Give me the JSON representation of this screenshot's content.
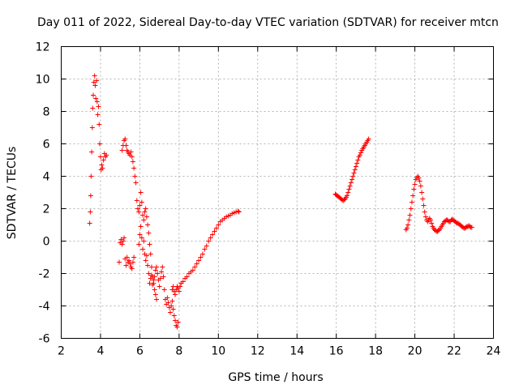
{
  "chart_data": {
    "type": "scatter",
    "title": "Day 011 of 2022, Sidereal Day-to-day VTEC variation (SDTVAR) for receiver mtcn",
    "xlabel": "GPS time / hours",
    "ylabel": "SDTVAR / TECUs",
    "xlim": [
      2,
      24
    ],
    "ylim": [
      -6,
      12
    ],
    "xticks": [
      2,
      4,
      6,
      8,
      10,
      12,
      14,
      16,
      18,
      20,
      22,
      24
    ],
    "yticks": [
      -6,
      -4,
      -2,
      0,
      2,
      4,
      6,
      8,
      10,
      12
    ],
    "grid": true,
    "marker": "+",
    "color": "#ff0000",
    "series": [
      {
        "name": "SDTVAR",
        "points": [
          [
            3.45,
            1.1
          ],
          [
            3.48,
            1.8
          ],
          [
            3.5,
            2.8
          ],
          [
            3.52,
            4.0
          ],
          [
            3.55,
            5.5
          ],
          [
            3.58,
            7.0
          ],
          [
            3.6,
            8.2
          ],
          [
            3.63,
            9.0
          ],
          [
            3.66,
            9.8
          ],
          [
            3.7,
            10.2
          ],
          [
            3.73,
            9.6
          ],
          [
            3.76,
            8.8
          ],
          [
            3.8,
            9.9
          ],
          [
            3.83,
            8.6
          ],
          [
            3.86,
            7.8
          ],
          [
            3.9,
            8.3
          ],
          [
            3.93,
            7.2
          ],
          [
            3.96,
            6.0
          ],
          [
            4.0,
            5.2
          ],
          [
            4.03,
            4.4
          ],
          [
            4.06,
            4.7
          ],
          [
            4.1,
            4.5
          ],
          [
            4.15,
            5.0
          ],
          [
            4.2,
            5.4
          ],
          [
            4.25,
            5.2
          ],
          [
            4.3,
            5.3
          ],
          [
            4.95,
            -1.3
          ],
          [
            5.0,
            -0.1
          ],
          [
            5.05,
            0.1
          ],
          [
            5.1,
            -0.2
          ],
          [
            5.15,
            0.0
          ],
          [
            5.2,
            0.2
          ],
          [
            5.25,
            -1.1
          ],
          [
            5.3,
            -1.5
          ],
          [
            5.35,
            -1.0
          ],
          [
            5.4,
            -1.3
          ],
          [
            5.45,
            -1.2
          ],
          [
            5.5,
            -1.4
          ],
          [
            5.55,
            -1.6
          ],
          [
            5.6,
            -1.7
          ],
          [
            5.65,
            -1.3
          ],
          [
            5.7,
            -1.0
          ],
          [
            5.1,
            5.6
          ],
          [
            5.15,
            5.9
          ],
          [
            5.2,
            6.2
          ],
          [
            5.25,
            6.3
          ],
          [
            5.3,
            5.9
          ],
          [
            5.35,
            5.6
          ],
          [
            5.4,
            5.5
          ],
          [
            5.45,
            5.4
          ],
          [
            5.5,
            5.3
          ],
          [
            5.55,
            5.5
          ],
          [
            5.6,
            5.2
          ],
          [
            5.65,
            4.9
          ],
          [
            5.7,
            4.5
          ],
          [
            5.75,
            4.0
          ],
          [
            5.8,
            3.6
          ],
          [
            5.85,
            2.5
          ],
          [
            5.9,
            2.0
          ],
          [
            5.95,
            1.8
          ],
          [
            6.0,
            2.2
          ],
          [
            6.05,
            3.0
          ],
          [
            6.1,
            2.4
          ],
          [
            6.15,
            1.6
          ],
          [
            6.2,
            1.3
          ],
          [
            6.25,
            1.8
          ],
          [
            6.3,
            2.0
          ],
          [
            6.35,
            1.5
          ],
          [
            6.4,
            1.0
          ],
          [
            6.45,
            0.5
          ],
          [
            6.5,
            -0.2
          ],
          [
            6.55,
            -0.8
          ],
          [
            6.6,
            -1.6
          ],
          [
            6.65,
            -2.2
          ],
          [
            6.7,
            -2.6
          ],
          [
            6.75,
            -3.0
          ],
          [
            6.8,
            -3.3
          ],
          [
            6.85,
            -3.6
          ],
          [
            5.95,
            -0.2
          ],
          [
            6.0,
            0.4
          ],
          [
            6.05,
            0.9
          ],
          [
            6.1,
            0.2
          ],
          [
            6.15,
            -0.5
          ],
          [
            6.2,
            0.0
          ],
          [
            6.25,
            -0.8
          ],
          [
            6.3,
            -1.2
          ],
          [
            6.35,
            -0.9
          ],
          [
            6.4,
            -1.5
          ],
          [
            6.45,
            -2.0
          ],
          [
            6.5,
            -2.6
          ],
          [
            6.55,
            -2.3
          ],
          [
            6.6,
            -2.1
          ],
          [
            6.65,
            -2.7
          ],
          [
            6.7,
            -2.4
          ],
          [
            6.75,
            -2.2
          ],
          [
            6.8,
            -1.8
          ],
          [
            6.85,
            -1.6
          ],
          [
            6.9,
            -2.0
          ],
          [
            6.95,
            -2.4
          ],
          [
            7.0,
            -2.8
          ],
          [
            7.05,
            -2.3
          ],
          [
            7.1,
            -1.9
          ],
          [
            7.15,
            -1.6
          ],
          [
            7.2,
            -2.2
          ],
          [
            7.25,
            -3.0
          ],
          [
            7.3,
            -3.6
          ],
          [
            7.35,
            -3.9
          ],
          [
            7.4,
            -3.5
          ],
          [
            7.45,
            -3.8
          ],
          [
            7.5,
            -4.1
          ],
          [
            7.55,
            -4.4
          ],
          [
            7.6,
            -4.0
          ],
          [
            7.65,
            -3.7
          ],
          [
            7.7,
            -4.2
          ],
          [
            7.75,
            -4.6
          ],
          [
            7.8,
            -4.9
          ],
          [
            7.85,
            -5.2
          ],
          [
            7.9,
            -5.3
          ],
          [
            7.95,
            -5.0
          ],
          [
            7.65,
            -3.0
          ],
          [
            7.7,
            -2.8
          ],
          [
            7.75,
            -3.1
          ],
          [
            7.8,
            -3.3
          ],
          [
            7.85,
            -3.0
          ],
          [
            7.9,
            -2.8
          ],
          [
            7.95,
            -2.9
          ],
          [
            8.0,
            -3.1
          ],
          [
            8.05,
            -2.8
          ],
          [
            8.1,
            -2.6
          ],
          [
            8.2,
            -2.5
          ],
          [
            8.3,
            -2.3
          ],
          [
            8.4,
            -2.2
          ],
          [
            8.5,
            -2.0
          ],
          [
            8.6,
            -1.9
          ],
          [
            8.7,
            -1.8
          ],
          [
            8.8,
            -1.6
          ],
          [
            8.9,
            -1.4
          ],
          [
            9.0,
            -1.2
          ],
          [
            9.1,
            -1.0
          ],
          [
            9.2,
            -0.8
          ],
          [
            9.3,
            -0.5
          ],
          [
            9.4,
            -0.3
          ],
          [
            9.5,
            0.0
          ],
          [
            9.6,
            0.2
          ],
          [
            9.7,
            0.4
          ],
          [
            9.8,
            0.6
          ],
          [
            9.9,
            0.8
          ],
          [
            10.0,
            1.0
          ],
          [
            10.1,
            1.2
          ],
          [
            10.2,
            1.3
          ],
          [
            10.3,
            1.4
          ],
          [
            10.4,
            1.5
          ],
          [
            10.5,
            1.55
          ],
          [
            10.6,
            1.6
          ],
          [
            10.7,
            1.7
          ],
          [
            10.8,
            1.75
          ],
          [
            10.9,
            1.8
          ],
          [
            11.0,
            1.85
          ],
          [
            11.05,
            1.8
          ],
          [
            15.95,
            2.9
          ],
          [
            16.0,
            2.85
          ],
          [
            16.05,
            2.8
          ],
          [
            16.1,
            2.75
          ],
          [
            16.15,
            2.7
          ],
          [
            16.2,
            2.65
          ],
          [
            16.25,
            2.6
          ],
          [
            16.3,
            2.55
          ],
          [
            16.35,
            2.5
          ],
          [
            16.4,
            2.55
          ],
          [
            16.45,
            2.6
          ],
          [
            16.5,
            2.7
          ],
          [
            16.55,
            2.8
          ],
          [
            16.6,
            3.0
          ],
          [
            16.65,
            3.2
          ],
          [
            16.7,
            3.4
          ],
          [
            16.75,
            3.6
          ],
          [
            16.8,
            3.8
          ],
          [
            16.85,
            4.0
          ],
          [
            16.9,
            4.2
          ],
          [
            16.95,
            4.4
          ],
          [
            17.0,
            4.6
          ],
          [
            17.05,
            4.8
          ],
          [
            17.1,
            5.0
          ],
          [
            17.15,
            5.2
          ],
          [
            17.2,
            5.3
          ],
          [
            17.25,
            5.45
          ],
          [
            17.3,
            5.6
          ],
          [
            17.35,
            5.7
          ],
          [
            17.4,
            5.8
          ],
          [
            17.45,
            5.9
          ],
          [
            17.5,
            6.0
          ],
          [
            17.55,
            6.1
          ],
          [
            17.6,
            6.2
          ],
          [
            17.65,
            6.3
          ],
          [
            19.55,
            0.7
          ],
          [
            19.6,
            0.8
          ],
          [
            19.65,
            1.0
          ],
          [
            19.7,
            1.3
          ],
          [
            19.75,
            1.6
          ],
          [
            19.8,
            2.0
          ],
          [
            19.85,
            2.4
          ],
          [
            19.9,
            2.8
          ],
          [
            19.95,
            3.2
          ],
          [
            20.0,
            3.5
          ],
          [
            20.05,
            3.8
          ],
          [
            20.1,
            3.9
          ],
          [
            20.15,
            4.0
          ],
          [
            20.2,
            3.9
          ],
          [
            20.25,
            3.7
          ],
          [
            20.3,
            3.4
          ],
          [
            20.35,
            3.0
          ],
          [
            20.4,
            2.6
          ],
          [
            20.45,
            2.2
          ],
          [
            20.5,
            1.8
          ],
          [
            20.55,
            1.5
          ],
          [
            20.6,
            1.3
          ],
          [
            20.65,
            1.2
          ],
          [
            20.7,
            1.3
          ],
          [
            20.75,
            1.4
          ],
          [
            20.8,
            1.3
          ],
          [
            20.85,
            1.1
          ],
          [
            20.9,
            0.9
          ],
          [
            20.95,
            0.8
          ],
          [
            21.0,
            0.7
          ],
          [
            21.05,
            0.65
          ],
          [
            21.1,
            0.6
          ],
          [
            21.15,
            0.6
          ],
          [
            21.2,
            0.65
          ],
          [
            21.25,
            0.7
          ],
          [
            21.3,
            0.8
          ],
          [
            21.35,
            0.9
          ],
          [
            21.4,
            1.0
          ],
          [
            21.45,
            1.1
          ],
          [
            21.5,
            1.2
          ],
          [
            21.55,
            1.25
          ],
          [
            21.6,
            1.3
          ],
          [
            21.65,
            1.3
          ],
          [
            21.7,
            1.25
          ],
          [
            21.75,
            1.2
          ],
          [
            21.8,
            1.2
          ],
          [
            21.85,
            1.3
          ],
          [
            21.9,
            1.35
          ],
          [
            21.95,
            1.3
          ],
          [
            22.0,
            1.25
          ],
          [
            22.05,
            1.2
          ],
          [
            22.1,
            1.15
          ],
          [
            22.15,
            1.1
          ],
          [
            22.2,
            1.1
          ],
          [
            22.25,
            1.05
          ],
          [
            22.3,
            1.0
          ],
          [
            22.35,
            0.95
          ],
          [
            22.4,
            0.9
          ],
          [
            22.45,
            0.85
          ],
          [
            22.5,
            0.8
          ],
          [
            22.55,
            0.8
          ],
          [
            22.6,
            0.85
          ],
          [
            22.65,
            0.9
          ],
          [
            22.7,
            0.9
          ],
          [
            22.75,
            0.95
          ],
          [
            22.8,
            0.9
          ],
          [
            22.85,
            0.85
          ],
          [
            22.9,
            0.85
          ]
        ]
      }
    ]
  }
}
